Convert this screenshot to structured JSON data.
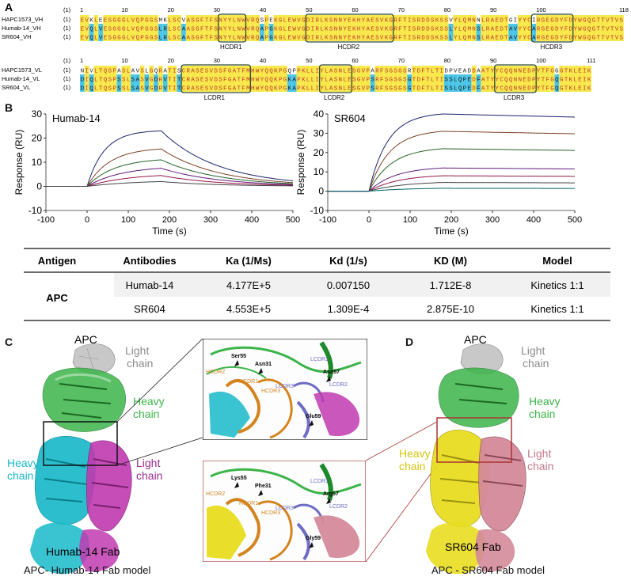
{
  "panels": {
    "A": "A",
    "B": "B",
    "C": "C",
    "D": "D"
  },
  "alignment_heavy": {
    "ticks": [
      "(1)",
      "1",
      "10",
      "20",
      "30",
      "40",
      "50",
      "60",
      "70",
      "80",
      "90",
      "100",
      "118"
    ],
    "rows": [
      {
        "name": "HAPC1573_VH",
        "num": "(1)",
        "seq": "EVKLEESGGGLVQPGGSMKLSCVASGFTFSNYYLNWVRQSPEKGLEWVGDIRLKSNNYEKHYAESVKGRFTISRDDSKSSVYLQMNNLRAEDTGIYYCIRGEGDYFDYWGQGTTVTVSS"
      },
      {
        "name": "Humab-14_VH",
        "num": "(1)",
        "seq": "EVQLVESGGGLVQPGGSLRLSCAASGFTFSNYYLNWVRQAPGKGLEWVGDIRLKSNNYEKHYAESVKGRFTISRDDSKSSLYLQMNSLRAEDTAVYYCARGEGDYFDYWGQGTTVTVSS"
      },
      {
        "name": "SR604_VH",
        "num": "(1)",
        "seq": "EVQLVESGGGLVQPGGSLRLSCAASGFTFSNYYLNWVRQAPGKGLEWVGDIRLKSNNYEKHYAESVKGRFTISRDDSKSSLYLQMNSLRAEDTAVYYCARGEGDYFDYWGQGTTVTVSS"
      }
    ],
    "cdr_labels": [
      "HCDR1",
      "HCDR2",
      "HCDR3"
    ]
  },
  "alignment_light": {
    "ticks": [
      "(1)",
      "1",
      "10",
      "20",
      "30",
      "40",
      "50",
      "60",
      "70",
      "80",
      "90",
      "100",
      "111"
    ],
    "rows": [
      {
        "name": "HAPC1573_VL",
        "num": "(1)",
        "seq": "NIVLTQSPASLAVSLGQRATISCRASESVDSFGATFMHWYQQKPGQPPKLLIYLASNLESGVPARFSGSGSRTDFTLTIDPVEADDAATYYCQQNNEDPYTFGGGTKLEIK"
      },
      {
        "name": "Humab-14_VL",
        "num": "(1)",
        "seq": "DIQLTQSPSSLSASVGDRVTITCRASESVDSFGATFMHWYQQKPGKAPKLLIYLASNLESGVPSRFSGSGSGTDFTLTISSLQPEDFATYYCQQNNEDPYTFGQGTKLEIK"
      },
      {
        "name": "SR604_VL",
        "num": "(1)",
        "seq": "DIQLTQSPSSLSASVGDRVTITCRASESVDSFGATFMHWYQQKPGKAPKLLIYLASNLESGVPSRFSGSGSGTDFTLTISSLQPEDFATYYCQQNNEDPYTFGQGTKLEIK"
      }
    ],
    "cdr_labels": [
      "LCDR1",
      "LCDR2",
      "LCDR3"
    ]
  },
  "chart_data": [
    {
      "type": "line",
      "title": "Humab-14",
      "xlabel": "Time (s)",
      "ylabel": "Response (RU)",
      "xlim": [
        -100,
        500
      ],
      "ylim": [
        -10,
        30
      ],
      "xticks": [
        -100,
        0,
        100,
        200,
        300,
        400,
        500
      ],
      "yticks": [
        -10,
        0,
        10,
        20,
        30
      ],
      "association_end": 180,
      "series": [
        {
          "peak": 23.0,
          "koff": 0.0072,
          "kon": 0.024
        },
        {
          "peak": 15.5,
          "koff": 0.0072,
          "kon": 0.018
        },
        {
          "peak": 11.0,
          "koff": 0.0072,
          "kon": 0.015
        },
        {
          "peak": 7.5,
          "koff": 0.0072,
          "kon": 0.012
        },
        {
          "peak": 4.5,
          "koff": 0.0072,
          "kon": 0.01
        },
        {
          "peak": 2.0,
          "koff": 0.0072,
          "kon": 0.008
        }
      ]
    },
    {
      "type": "line",
      "title": "SR604",
      "xlabel": "Time (s)",
      "ylabel": "Response (RU)",
      "xlim": [
        -100,
        500
      ],
      "ylim": [
        -10,
        40
      ],
      "xticks": [
        -100,
        0,
        100,
        200,
        300,
        400,
        500
      ],
      "yticks": [
        -10,
        0,
        10,
        20,
        30,
        40
      ],
      "association_end": 180,
      "series": [
        {
          "peak": 40.0,
          "koff": 0.00013,
          "kon": 0.022
        },
        {
          "peak": 31.0,
          "koff": 0.00013,
          "kon": 0.02
        },
        {
          "peak": 22.0,
          "koff": 0.00013,
          "kon": 0.018
        },
        {
          "peak": 12.0,
          "koff": 0.00013,
          "kon": 0.016
        },
        {
          "peak": 8.0,
          "koff": 0.00013,
          "kon": 0.014
        },
        {
          "peak": 4.5,
          "koff": 0.00013,
          "kon": 0.012
        },
        {
          "peak": 1.5,
          "koff": 0.00013,
          "kon": 0.01
        }
      ]
    }
  ],
  "kinetics_table": {
    "headers": [
      "Antigen",
      "Antibodies",
      "Ka (1/Ms)",
      "Kd (1/s)",
      "KD (M)",
      "Model"
    ],
    "antigen": "APC",
    "rows": [
      [
        "Humab-14",
        "4.177E+5",
        "0.007150",
        "1.712E-8",
        "Kinetics 1:1"
      ],
      [
        "SR604",
        "4.553E+5",
        "1.309E-4",
        "2.875E-10",
        "Kinetics 1:1"
      ]
    ]
  },
  "structure_C": {
    "apc": "APC",
    "light_gray": "Light chain",
    "heavy_green": "Heavy chain",
    "heavy_cyan": "Heavy chain",
    "light_magenta": "Light chain",
    "fab": "Humab-14 Fab",
    "caption": "APC- Humab-14 Fab model"
  },
  "structure_D": {
    "apc": "APC",
    "light_gray": "Light chain",
    "heavy_green": "Heavy chain",
    "heavy_yellow": "Heavy chain",
    "light_pink": "Light chain",
    "fab": "SR604 Fab",
    "caption": "APC - SR604 Fab model"
  },
  "zoom_top": {
    "residues": [
      "Ser55",
      "Asn31",
      "Asn57",
      "Glu59"
    ],
    "cdrs": [
      "HCDR2",
      "HCDR1",
      "HCDR3",
      "LCDR3",
      "LCDR1",
      "LCDR2"
    ]
  },
  "zoom_bottom": {
    "residues": [
      "Lys55",
      "Phe31",
      "Arg57",
      "Gly59"
    ],
    "cdrs": [
      "HCDR2",
      "HCDR1",
      "HCDR3",
      "LCDR3",
      "LCDR1",
      "LCDR2"
    ]
  },
  "colors": {
    "aln_yellow": "#f8e84a",
    "aln_cyan": "#4cc6e8",
    "aln_green": "#3cb84a",
    "aln_red": "#c0392b",
    "cdr_box": "#2d4a3e",
    "cyan_chain": "#17b8c8",
    "magenta_chain": "#c03ab0",
    "green_chain": "#3cb44a",
    "yellow_chain": "#e8dd20",
    "pink_chain": "#d48a9a",
    "gray_chain": "#bbbbbb"
  }
}
